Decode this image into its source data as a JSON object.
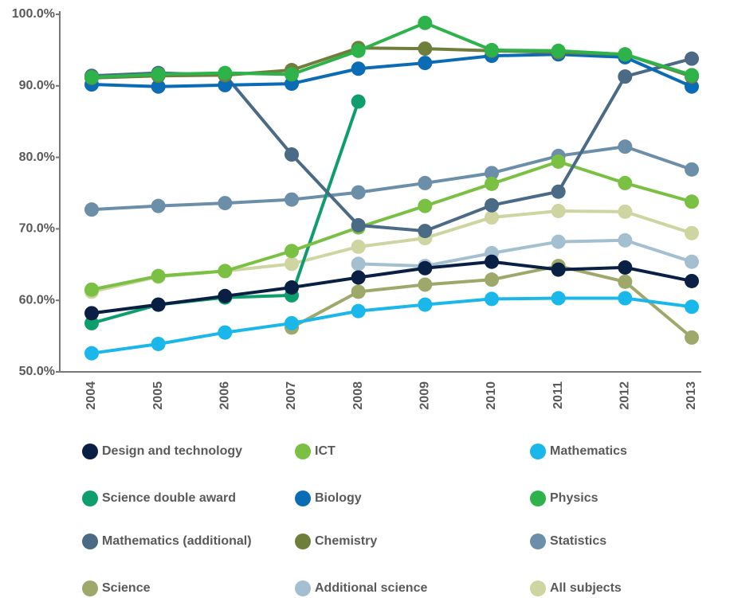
{
  "chart_data": {
    "type": "line",
    "categories": [
      "2004",
      "2005",
      "2006",
      "2007",
      "2008",
      "2009",
      "2010",
      "2011",
      "2012",
      "2013"
    ],
    "ylim": [
      50,
      100
    ],
    "yticks": [
      {
        "value": 50,
        "label": "50.0%"
      },
      {
        "value": 60,
        "label": "60.0%"
      },
      {
        "value": 70,
        "label": "70.0%"
      },
      {
        "value": 80,
        "label": "80.0%"
      },
      {
        "value": 90,
        "label": "90.0%"
      },
      {
        "value": 100,
        "label": "100.0%"
      }
    ],
    "grid": false,
    "series": [
      {
        "name": "All subjects",
        "color": "#cfd5a0",
        "values": [
          61.2,
          63.3,
          64.1,
          65.1,
          67.5,
          68.7,
          71.6,
          72.5,
          72.4,
          69.4
        ]
      },
      {
        "name": "Additional science",
        "color": "#a3bfd0",
        "values": [
          null,
          null,
          null,
          null,
          65.1,
          64.8,
          66.6,
          68.2,
          68.4,
          65.4
        ]
      },
      {
        "name": "Science",
        "color": "#9ea86a",
        "values": [
          null,
          null,
          null,
          56.2,
          61.2,
          62.2,
          62.9,
          64.8,
          62.6,
          54.8
        ]
      },
      {
        "name": "Statistics",
        "color": "#6b8fa8",
        "values": [
          72.7,
          73.2,
          73.6,
          74.1,
          75.1,
          76.4,
          77.8,
          80.2,
          81.5,
          78.3
        ]
      },
      {
        "name": "Mathematics",
        "color": "#1ab7ea",
        "values": [
          52.6,
          53.9,
          55.5,
          56.8,
          58.5,
          59.4,
          60.2,
          60.3,
          60.3,
          59.1
        ]
      },
      {
        "name": "Science double award",
        "color": "#0e9e6e",
        "values": [
          56.8,
          59.4,
          60.4,
          60.7,
          87.8,
          null,
          null,
          null,
          null,
          null
        ]
      },
      {
        "name": "ICT",
        "color": "#7ac143",
        "values": [
          61.5,
          63.4,
          64.1,
          66.9,
          70.2,
          73.2,
          76.3,
          79.4,
          76.4,
          73.8
        ]
      },
      {
        "name": "Design and technology",
        "color": "#0a1f44",
        "values": [
          58.2,
          59.4,
          60.6,
          61.8,
          63.2,
          64.5,
          65.4,
          64.3,
          64.6,
          62.7
        ]
      },
      {
        "name": "Mathematics (additional)",
        "color": "#4a6a85",
        "values": [
          91.4,
          91.8,
          91.5,
          80.4,
          70.5,
          69.7,
          73.3,
          75.2,
          91.3,
          93.8
        ]
      },
      {
        "name": "Biology",
        "color": "#0a6cb4",
        "values": [
          90.2,
          89.9,
          90.1,
          90.3,
          92.4,
          93.2,
          94.2,
          94.4,
          94.0,
          89.9
        ]
      },
      {
        "name": "Chemistry",
        "color": "#6f7f3b",
        "values": [
          91.1,
          91.4,
          91.5,
          92.2,
          95.3,
          95.2,
          94.9,
          94.7,
          94.4,
          91.3
        ]
      },
      {
        "name": "Physics",
        "color": "#2db34a",
        "values": [
          91.2,
          91.6,
          91.8,
          91.6,
          94.9,
          98.8,
          95.0,
          94.9,
          94.4,
          91.5
        ]
      }
    ]
  }
}
